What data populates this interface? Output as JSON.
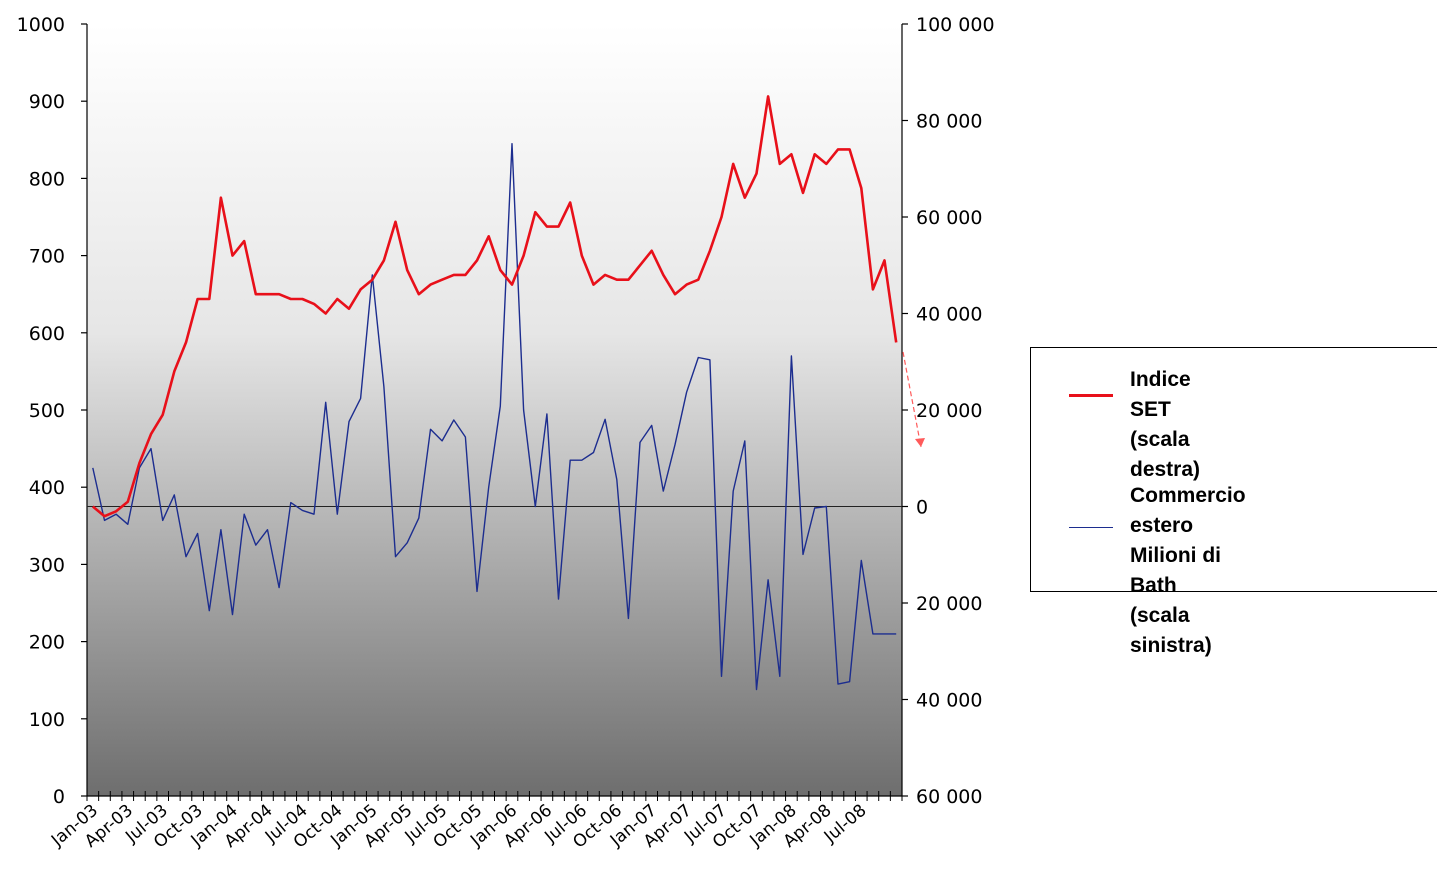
{
  "chart_data": {
    "type": "line",
    "title": "",
    "dual_axis": true,
    "left_axis": {
      "min": 0,
      "max": 1000,
      "ticks": [
        "0",
        "100",
        "200",
        "300",
        "400",
        "500",
        "600",
        "700",
        "800",
        "900",
        "1000"
      ]
    },
    "right_axis": {
      "min": -60000,
      "max": 100000,
      "ticks": [
        {
          "label": "60 000",
          "value": -60000,
          "color": "#e8101a"
        },
        {
          "label": "40 000",
          "value": -40000,
          "color": "#e8101a"
        },
        {
          "label": "20 000",
          "value": -20000,
          "color": "#e8101a"
        },
        {
          "label": "0",
          "value": 0,
          "color": "#000000"
        },
        {
          "label": "20 000",
          "value": 20000,
          "color": "#000000"
        },
        {
          "label": "40 000",
          "value": 40000,
          "color": "#000000"
        },
        {
          "label": "60 000",
          "value": 60000,
          "color": "#000000"
        },
        {
          "label": "80 000",
          "value": 80000,
          "color": "#000000"
        },
        {
          "label": "100 000",
          "value": 100000,
          "color": "#000000"
        }
      ]
    },
    "x_labels": [
      "Jan-03",
      "Apr-03",
      "Jul-03",
      "Oct-03",
      "Jan-04",
      "Apr-04",
      "Jul-04",
      "Oct-04",
      "Jan-05",
      "Apr-05",
      "Jul-05",
      "Oct-05",
      "Jan-06",
      "Apr-06",
      "Jul-06",
      "Oct-06",
      "Jan-07",
      "Apr-07",
      "Jul-07",
      "Oct-07",
      "Jan-08",
      "Apr-08",
      "Jul-08"
    ],
    "x_count": 70,
    "legend_position": "right",
    "grid": false,
    "series": [
      {
        "name": "Indice SET\n(scala destra)",
        "color": "#e8101a",
        "axis": "right",
        "values": [
          0,
          -2000,
          -1000,
          1000,
          9000,
          15000,
          19000,
          28000,
          34000,
          43000,
          43000,
          64000,
          52000,
          55000,
          44000,
          44000,
          44000,
          43000,
          43000,
          42000,
          40000,
          43000,
          41000,
          45000,
          47000,
          51000,
          59000,
          49000,
          44000,
          46000,
          47000,
          48000,
          48000,
          51000,
          56000,
          49000,
          46000,
          52000,
          61000,
          58000,
          58000,
          63000,
          52000,
          46000,
          48000,
          47000,
          47000,
          50000,
          53000,
          48000,
          44000,
          46000,
          47000,
          53000,
          60000,
          71000,
          64000,
          69000,
          85000,
          71000,
          73000,
          65000,
          73000,
          71000,
          74000,
          74000,
          66000,
          45000,
          51000,
          34000
        ]
      },
      {
        "name": "Commercio estero\nMilioni di Bath\n(scala sinistra)",
        "color": "#1c2d8f",
        "axis": "left",
        "values": [
          425,
          357,
          365,
          352,
          425,
          450,
          357,
          390,
          310,
          340,
          240,
          345,
          235,
          365,
          325,
          345,
          270,
          380,
          370,
          365,
          510,
          365,
          485,
          515,
          675,
          530,
          310,
          328,
          360,
          475,
          460,
          487,
          465,
          265,
          400,
          505,
          845,
          500,
          375,
          495,
          255,
          435,
          435,
          445,
          488,
          410,
          230,
          458,
          480,
          395,
          455,
          523,
          568,
          565,
          155,
          395,
          460,
          138,
          280,
          155,
          570,
          313,
          373,
          375,
          145,
          148,
          305,
          210,
          210,
          210
        ]
      }
    ]
  }
}
